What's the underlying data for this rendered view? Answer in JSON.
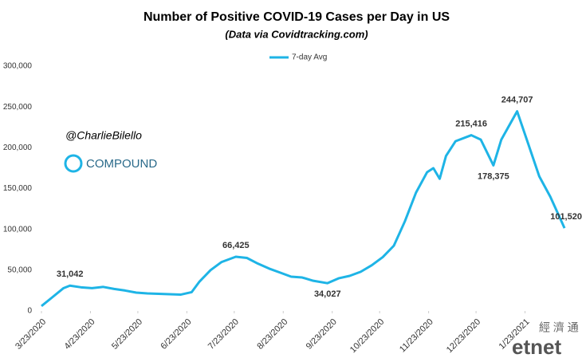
{
  "chart_data": {
    "type": "line",
    "title": "Number of Positive COVID-19 Cases per Day in US",
    "subtitle": "(Data via Covidtracking.com)",
    "watermarks": [
      "@CharlieBilello",
      "COMPOUND",
      "經 濟 通",
      "etnet"
    ],
    "x": [
      "3/23/2020",
      "3/30/2020",
      "4/6/2020",
      "4/10/2020",
      "4/17/2020",
      "4/24/2020",
      "5/1/2020",
      "5/8/2020",
      "5/15/2020",
      "5/22/2020",
      "5/29/2020",
      "6/5/2020",
      "6/12/2020",
      "6/19/2020",
      "6/26/2020",
      "7/1/2020",
      "7/8/2020",
      "7/15/2020",
      "7/24/2020",
      "7/31/2020",
      "8/7/2020",
      "8/14/2020",
      "8/21/2020",
      "8/28/2020",
      "9/4/2020",
      "9/11/2020",
      "9/20/2020",
      "9/27/2020",
      "10/4/2020",
      "10/11/2020",
      "10/18/2020",
      "10/25/2020",
      "11/1/2020",
      "11/8/2020",
      "11/15/2020",
      "11/22/2020",
      "11/26/2020",
      "11/30/2020",
      "12/4/2020",
      "12/10/2020",
      "12/20/2020",
      "12/26/2020",
      "1/3/2021",
      "1/8/2021",
      "1/18/2021",
      "1/25/2021",
      "2/1/2021",
      "2/8/2021",
      "2/17/2021"
    ],
    "series": [
      {
        "name": "7-day Avg",
        "color": "#1eb4e6",
        "values": [
          6000,
          17000,
          28000,
          31042,
          29000,
          28000,
          29500,
          27000,
          25000,
          22500,
          21500,
          21000,
          20500,
          20000,
          23000,
          36000,
          50000,
          60000,
          66425,
          65000,
          58000,
          52000,
          47000,
          42000,
          41000,
          37000,
          34027,
          40000,
          43000,
          48000,
          56000,
          66000,
          80000,
          110000,
          145000,
          170000,
          175000,
          162000,
          190000,
          208000,
          215416,
          210000,
          178375,
          210000,
          244707,
          205000,
          165000,
          140000,
          101520
        ],
        "value_labels": [
          null,
          null,
          null,
          "31,042",
          null,
          null,
          null,
          null,
          null,
          null,
          null,
          null,
          null,
          null,
          null,
          null,
          null,
          null,
          "66,425",
          null,
          null,
          null,
          null,
          null,
          null,
          null,
          "34,027",
          null,
          null,
          null,
          null,
          null,
          null,
          null,
          null,
          null,
          null,
          null,
          null,
          null,
          "215,416",
          null,
          "178,375",
          null,
          "244,707",
          null,
          null,
          null,
          "101,520"
        ]
      }
    ],
    "xlim": [
      "3/23/2020",
      "2/22/2021"
    ],
    "xticks": [
      "3/23/2020",
      "4/23/2020",
      "5/23/2020",
      "6/23/2020",
      "7/23/2020",
      "8/23/2020",
      "9/23/2020",
      "10/23/2020",
      "11/23/2020",
      "12/23/2020",
      "1/23/2021"
    ],
    "ylim": [
      0,
      300000
    ],
    "yticks": [
      0,
      {
        "value": 50000,
        "label": "50,000"
      },
      {
        "value": 100000,
        "label": "100,000"
      },
      {
        "value": 150000,
        "label": "150,000"
      },
      {
        "value": 200000,
        "label": "200,000"
      },
      {
        "value": 250000,
        "label": "250,000"
      },
      {
        "value": 300000,
        "label": "300,000"
      }
    ],
    "legend": "top"
  }
}
